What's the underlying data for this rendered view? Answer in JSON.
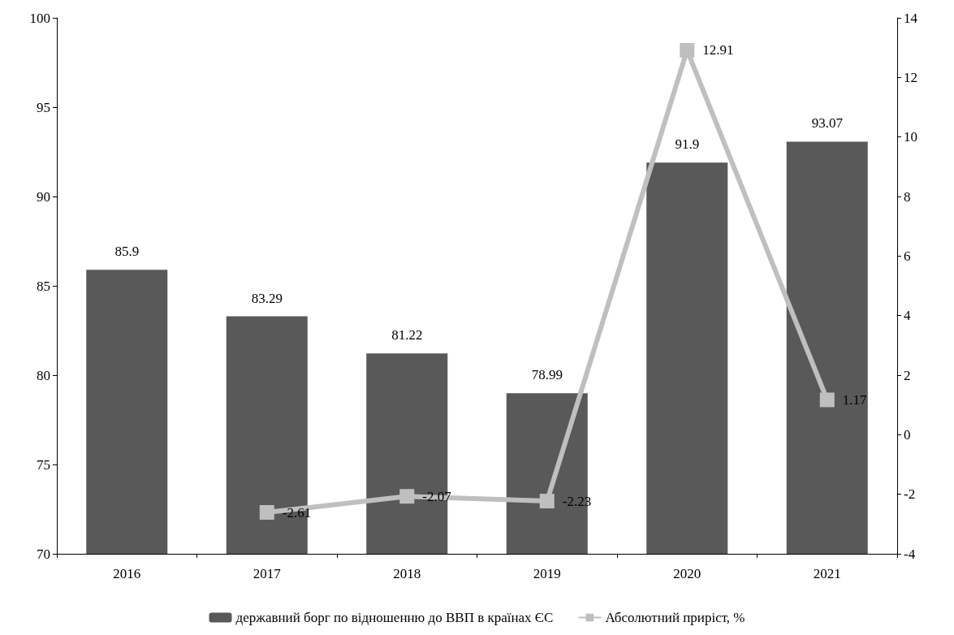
{
  "chart_data": {
    "type": "bar",
    "categories": [
      "2016",
      "2017",
      "2018",
      "2019",
      "2020",
      "2021"
    ],
    "series": [
      {
        "name": "державний борг по відношенню до ВВП в країнах ЄС",
        "color": "#595959",
        "values": [
          85.9,
          83.29,
          81.22,
          78.99,
          91.9,
          93.07
        ]
      },
      {
        "name": "Абсолютний приріст, %",
        "type": "line",
        "axis": "y2",
        "color": "#bfbfbf",
        "values": [
          null,
          -2.61,
          -2.07,
          -2.23,
          12.91,
          1.17
        ]
      }
    ],
    "ylim": [
      70,
      100
    ],
    "yticks": [
      70,
      75,
      80,
      85,
      90,
      95,
      100
    ],
    "y2lim": [
      -4,
      14
    ],
    "y2ticks": [
      -4,
      -2,
      0,
      2,
      4,
      6,
      8,
      10,
      12,
      14
    ],
    "data_labels": true,
    "grid": false,
    "legend": "bottom",
    "marker": "square",
    "line_style": "solid"
  }
}
